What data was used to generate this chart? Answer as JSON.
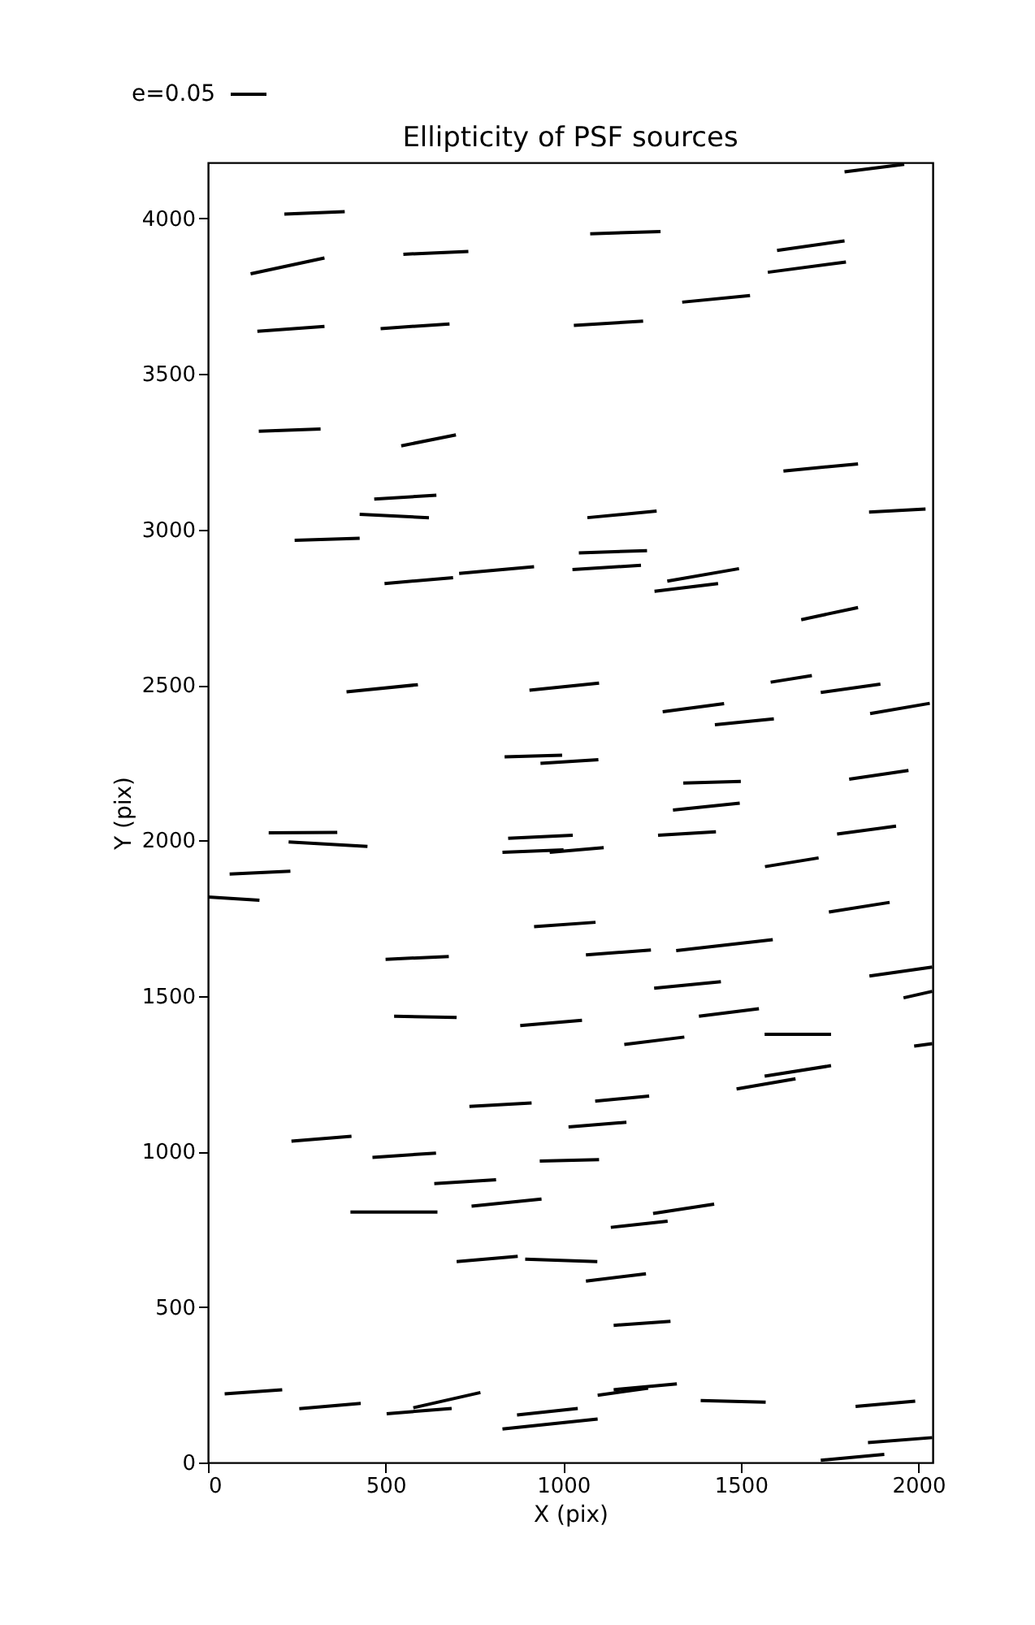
{
  "chart_data": {
    "type": "line",
    "title": "Ellipticity of PSF sources",
    "xlabel": "X (pix)",
    "ylabel": "Y (pix)",
    "color": "#000000",
    "annotations": [
      "e=0.05"
    ],
    "xlim": [
      0,
      2040
    ],
    "ylim": [
      0,
      4180
    ],
    "xticks": [
      0,
      500,
      1000,
      1500,
      2000
    ],
    "yticks": [
      0,
      500,
      1000,
      1500,
      2000,
      2500,
      3000,
      3500,
      4000
    ],
    "grid": false,
    "marker": "none",
    "line_style": "solid",
    "series": [
      {
        "x": [
          1792,
          1960
        ],
        "values": [
          4150,
          4174
        ]
      },
      {
        "x": [
          215,
          385
        ],
        "values": [
          4014,
          4022
        ]
      },
      {
        "x": [
          120,
          328
        ],
        "values": [
          3822,
          3873
        ]
      },
      {
        "x": [
          550,
          733
        ],
        "values": [
          3885,
          3894
        ]
      },
      {
        "x": [
          1076,
          1274
        ],
        "values": [
          3951,
          3958
        ]
      },
      {
        "x": [
          1602,
          1792
        ],
        "values": [
          3897,
          3928
        ]
      },
      {
        "x": [
          1576,
          1796
        ],
        "values": [
          3827,
          3860
        ]
      },
      {
        "x": [
          139,
          328
        ],
        "values": [
          3637,
          3653
        ]
      },
      {
        "x": [
          486,
          680
        ],
        "values": [
          3646,
          3661
        ]
      },
      {
        "x": [
          1030,
          1225
        ],
        "values": [
          3656,
          3670
        ]
      },
      {
        "x": [
          1335,
          1526
        ],
        "values": [
          3731,
          3752
        ]
      },
      {
        "x": [
          143,
          317
        ],
        "values": [
          3316,
          3323
        ]
      },
      {
        "x": [
          544,
          698
        ],
        "values": [
          3269,
          3304
        ]
      },
      {
        "x": [
          1620,
          1830
        ],
        "values": [
          3188,
          3211
        ]
      },
      {
        "x": [
          468,
          643
        ],
        "values": [
          3098,
          3110
        ]
      },
      {
        "x": [
          427,
          622
        ],
        "values": [
          3049,
          3038
        ]
      },
      {
        "x": [
          1068,
          1263
        ],
        "values": [
          3038,
          3059
        ]
      },
      {
        "x": [
          1861,
          2020
        ],
        "values": [
          3056,
          3066
        ]
      },
      {
        "x": [
          244,
          427
        ],
        "values": [
          2965,
          2972
        ]
      },
      {
        "x": [
          1044,
          1236
        ],
        "values": [
          2925,
          2932
        ]
      },
      {
        "x": [
          497,
          690
        ],
        "values": [
          2826,
          2845
        ]
      },
      {
        "x": [
          707,
          918
        ],
        "values": [
          2859,
          2880
        ]
      },
      {
        "x": [
          1026,
          1219
        ],
        "values": [
          2871,
          2885
        ]
      },
      {
        "x": [
          1293,
          1495
        ],
        "values": [
          2834,
          2874
        ]
      },
      {
        "x": [
          1257,
          1436
        ],
        "values": [
          2801,
          2826
        ]
      },
      {
        "x": [
          1670,
          1830
        ],
        "values": [
          2710,
          2749
        ]
      },
      {
        "x": [
          390,
          591
        ],
        "values": [
          2478,
          2501
        ]
      },
      {
        "x": [
          905,
          1101
        ],
        "values": [
          2483,
          2506
        ]
      },
      {
        "x": [
          1584,
          1700
        ],
        "values": [
          2509,
          2530
        ]
      },
      {
        "x": [
          1725,
          1893
        ],
        "values": [
          2476,
          2503
        ]
      },
      {
        "x": [
          1280,
          1453
        ],
        "values": [
          2414,
          2440
        ]
      },
      {
        "x": [
          1864,
          2032
        ],
        "values": [
          2408,
          2441
        ]
      },
      {
        "x": [
          1427,
          1593
        ],
        "values": [
          2372,
          2391
        ]
      },
      {
        "x": [
          835,
          997
        ],
        "values": [
          2269,
          2274
        ]
      },
      {
        "x": [
          936,
          1099
        ],
        "values": [
          2248,
          2260
        ]
      },
      {
        "x": [
          1338,
          1500
        ],
        "values": [
          2185,
          2190
        ]
      },
      {
        "x": [
          1805,
          1972
        ],
        "values": [
          2197,
          2225
        ]
      },
      {
        "x": [
          1309,
          1497
        ],
        "values": [
          2098,
          2120
        ]
      },
      {
        "x": [
          171,
          364
        ],
        "values": [
          2025,
          2026
        ]
      },
      {
        "x": [
          227,
          449
        ],
        "values": [
          1995,
          1981
        ]
      },
      {
        "x": [
          845,
          1027
        ],
        "values": [
          2007,
          2017
        ]
      },
      {
        "x": [
          829,
          1001
        ],
        "values": [
          1962,
          1970
        ]
      },
      {
        "x": [
          962,
          1114
        ],
        "values": [
          1962,
          1977
        ]
      },
      {
        "x": [
          1267,
          1430
        ],
        "values": [
          2017,
          2028
        ]
      },
      {
        "x": [
          1771,
          1937
        ],
        "values": [
          2021,
          2046
        ]
      },
      {
        "x": [
          61,
          232
        ],
        "values": [
          1892,
          1901
        ]
      },
      {
        "x": [
          0,
          145
        ],
        "values": [
          1818,
          1808
        ]
      },
      {
        "x": [
          1568,
          1719
        ],
        "values": [
          1916,
          1944
        ]
      },
      {
        "x": [
          1748,
          1919
        ],
        "values": [
          1770,
          1801
        ]
      },
      {
        "x": [
          918,
          1091
        ],
        "values": [
          1723,
          1737
        ]
      },
      {
        "x": [
          500,
          678
        ],
        "values": [
          1618,
          1627
        ]
      },
      {
        "x": [
          1064,
          1247
        ],
        "values": [
          1632,
          1648
        ]
      },
      {
        "x": [
          1318,
          1590
        ],
        "values": [
          1646,
          1681
        ]
      },
      {
        "x": [
          1862,
          2039
        ],
        "values": [
          1564,
          1593
        ]
      },
      {
        "x": [
          1958,
          2039
        ],
        "values": [
          1494,
          1515
        ]
      },
      {
        "x": [
          1256,
          1444
        ],
        "values": [
          1525,
          1546
        ]
      },
      {
        "x": [
          524,
          700
        ],
        "values": [
          1435,
          1431
        ]
      },
      {
        "x": [
          879,
          1053
        ],
        "values": [
          1405,
          1422
        ]
      },
      {
        "x": [
          1382,
          1551
        ],
        "values": [
          1435,
          1459
        ]
      },
      {
        "x": [
          1567,
          1754
        ],
        "values": [
          1377,
          1377
        ]
      },
      {
        "x": [
          1172,
          1341
        ],
        "values": [
          1344,
          1368
        ]
      },
      {
        "x": [
          1988,
          2039
        ],
        "values": [
          1339,
          1347
        ]
      },
      {
        "x": [
          1567,
          1754
        ],
        "values": [
          1242,
          1276
        ]
      },
      {
        "x": [
          1488,
          1654
        ],
        "values": [
          1201,
          1234
        ]
      },
      {
        "x": [
          736,
          911
        ],
        "values": [
          1145,
          1156
        ]
      },
      {
        "x": [
          1090,
          1242
        ],
        "values": [
          1162,
          1178
        ]
      },
      {
        "x": [
          1015,
          1178
        ],
        "values": [
          1079,
          1094
        ]
      },
      {
        "x": [
          235,
          404
        ],
        "values": [
          1033,
          1049
        ]
      },
      {
        "x": [
          463,
          642
        ],
        "values": [
          981,
          995
        ]
      },
      {
        "x": [
          934,
          1101
        ],
        "values": [
          969,
          974
        ]
      },
      {
        "x": [
          637,
          811
        ],
        "values": [
          897,
          909
        ]
      },
      {
        "x": [
          742,
          939
        ],
        "values": [
          824,
          847
        ]
      },
      {
        "x": [
          401,
          646
        ],
        "values": [
          805,
          805
        ]
      },
      {
        "x": [
          1253,
          1425
        ],
        "values": [
          801,
          831
        ]
      },
      {
        "x": [
          1134,
          1294
        ],
        "values": [
          756,
          776
        ]
      },
      {
        "x": [
          700,
          872
        ],
        "values": [
          646,
          663
        ]
      },
      {
        "x": [
          893,
          1096
        ],
        "values": [
          654,
          646
        ]
      },
      {
        "x": [
          1064,
          1233
        ],
        "values": [
          583,
          607
        ]
      },
      {
        "x": [
          1142,
          1302
        ],
        "values": [
          441,
          454
        ]
      },
      {
        "x": [
          47,
          209
        ],
        "values": [
          221,
          234
        ]
      },
      {
        "x": [
          257,
          430
        ],
        "values": [
          173,
          190
        ]
      },
      {
        "x": [
          503,
          686
        ],
        "values": [
          157,
          174
        ]
      },
      {
        "x": [
          578,
          767
        ],
        "values": [
          176,
          225
        ]
      },
      {
        "x": [
          870,
          1041
        ],
        "values": [
          153,
          174
        ]
      },
      {
        "x": [
          829,
          1097
        ],
        "values": [
          108,
          140
        ]
      },
      {
        "x": [
          1097,
          1239
        ],
        "values": [
          216,
          239
        ]
      },
      {
        "x": [
          1142,
          1320
        ],
        "values": [
          234,
          253
        ]
      },
      {
        "x": [
          1387,
          1570
        ],
        "values": [
          199,
          194
        ]
      },
      {
        "x": [
          1823,
          1991
        ],
        "values": [
          180,
          197
        ]
      },
      {
        "x": [
          1858,
          2039
        ],
        "values": [
          64,
          80
        ]
      },
      {
        "x": [
          1725,
          1904
        ],
        "values": [
          7,
          26
        ]
      }
    ]
  }
}
